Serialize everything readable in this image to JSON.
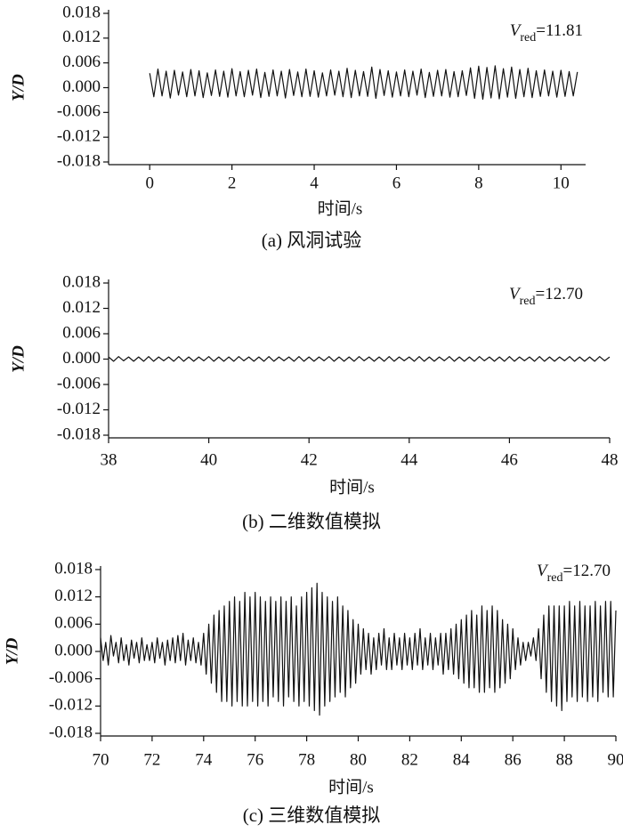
{
  "chart_data": [
    {
      "type": "line",
      "caption": "(a) 风洞试验",
      "xlabel": "时间/s",
      "ylabel": "Y/D",
      "annotation": {
        "symbol": "V",
        "subscript": "red",
        "text": "=11.81"
      },
      "xlim": [
        -1,
        10.6
      ],
      "ylim": [
        -0.018,
        0.018
      ],
      "xticks": [
        0,
        2,
        4,
        6,
        8,
        10
      ],
      "yticks": [
        0.018,
        0.012,
        0.006,
        {
          "value": 0,
          "label": "0.000"
        },
        -0.006,
        -0.012,
        -0.018
      ],
      "x": [
        0,
        0.1,
        0.2,
        0.3,
        0.4,
        0.5,
        0.6,
        0.7,
        0.8,
        0.9,
        1,
        1.1,
        1.2,
        1.3,
        1.4,
        1.5,
        1.6,
        1.7,
        1.8,
        1.9,
        2,
        2.1,
        2.2,
        2.3,
        2.4,
        2.5,
        2.6,
        2.7,
        2.8,
        2.9,
        3,
        3.1,
        3.2,
        3.3,
        3.4,
        3.5,
        3.6,
        3.7,
        3.8,
        3.9,
        4,
        4.1,
        4.2,
        4.3,
        4.4,
        4.5,
        4.6,
        4.7,
        4.8,
        4.9,
        5,
        5.1,
        5.2,
        5.3,
        5.4,
        5.5,
        5.6,
        5.7,
        5.8,
        5.9,
        6,
        6.1,
        6.2,
        6.3,
        6.4,
        6.5,
        6.6,
        6.7,
        6.8,
        6.9,
        7,
        7.1,
        7.2,
        7.3,
        7.4,
        7.5,
        7.6,
        7.7,
        7.8,
        7.9,
        8,
        8.1,
        8.2,
        8.3,
        8.4,
        8.5,
        8.6,
        8.7,
        8.8,
        8.9,
        9,
        9.1,
        9.2,
        9.3,
        9.4,
        9.5,
        9.6,
        9.7,
        9.8,
        9.9,
        10,
        10.1,
        10.2,
        10.3,
        10.4
      ],
      "series": [
        {
          "color": "#111111",
          "values": [
            0.0035,
            -0.0022,
            0.0045,
            -0.002,
            0.004,
            -0.0025,
            0.0042,
            -0.0018,
            0.0038,
            -0.0022,
            0.0044,
            -0.002,
            0.0041,
            -0.0024,
            0.0036,
            -0.0019,
            0.0043,
            -0.0021,
            0.004,
            -0.0023,
            0.0046,
            -0.002,
            0.0039,
            -0.0022,
            0.0042,
            -0.0018,
            0.0045,
            -0.0024,
            0.0037,
            -0.0021,
            0.0043,
            -0.002,
            0.004,
            -0.0025,
            0.0044,
            -0.0019,
            0.0038,
            -0.0022,
            0.0045,
            -0.0021,
            0.0041,
            -0.0023,
            0.0036,
            -0.002,
            0.0043,
            -0.0018,
            0.004,
            -0.0022,
            0.0047,
            -0.0024,
            0.0042,
            -0.002,
            0.0039,
            -0.0021,
            0.005,
            -0.0026,
            0.0044,
            -0.0019,
            0.0041,
            -0.0023,
            0.0038,
            -0.002,
            0.0043,
            -0.0022,
            0.004,
            -0.0018,
            0.0045,
            -0.0024,
            0.0037,
            -0.0021,
            0.0042,
            -0.002,
            0.0044,
            -0.0023,
            0.0039,
            -0.0022,
            0.0041,
            -0.0019,
            0.0048,
            -0.0026,
            0.0052,
            -0.0028,
            0.0049,
            -0.0025,
            0.0053,
            -0.0027,
            0.0046,
            -0.0023,
            0.005,
            -0.0026,
            0.0044,
            -0.0022,
            0.0047,
            -0.0024,
            0.0041,
            -0.0021,
            0.0043,
            -0.002,
            0.004,
            -0.0023,
            0.0042,
            -0.0021,
            0.0039,
            -0.002,
            0.0038
          ]
        }
      ]
    },
    {
      "type": "line",
      "caption": "(b) 二维数值模拟",
      "xlabel": "时间/s",
      "ylabel": "Y/D",
      "annotation": {
        "symbol": "V",
        "subscript": "red",
        "text": "=12.70"
      },
      "xlim": [
        38,
        48
      ],
      "ylim": [
        -0.018,
        0.018
      ],
      "xticks": [
        38,
        40,
        42,
        44,
        46,
        48
      ],
      "yticks": [
        0.018,
        0.012,
        0.006,
        {
          "value": 0,
          "label": "0.000"
        },
        -0.006,
        -0.012,
        -0.018
      ],
      "x": [
        38,
        38.1,
        38.2,
        38.3,
        38.4,
        38.5,
        38.6,
        38.7,
        38.8,
        38.9,
        39,
        39.1,
        39.2,
        39.3,
        39.4,
        39.5,
        39.6,
        39.7,
        39.8,
        39.9,
        40,
        40.1,
        40.2,
        40.3,
        40.4,
        40.5,
        40.6,
        40.7,
        40.8,
        40.9,
        41,
        41.1,
        41.2,
        41.3,
        41.4,
        41.5,
        41.6,
        41.7,
        41.8,
        41.9,
        42,
        42.1,
        42.2,
        42.3,
        42.4,
        42.5,
        42.6,
        42.7,
        42.8,
        42.9,
        43,
        43.1,
        43.2,
        43.3,
        43.4,
        43.5,
        43.6,
        43.7,
        43.8,
        43.9,
        44,
        44.1,
        44.2,
        44.3,
        44.4,
        44.5,
        44.6,
        44.7,
        44.8,
        44.9,
        45,
        45.1,
        45.2,
        45.3,
        45.4,
        45.5,
        45.6,
        45.7,
        45.8,
        45.9,
        46,
        46.1,
        46.2,
        46.3,
        46.4,
        46.5,
        46.6,
        46.7,
        46.8,
        46.9,
        47,
        47.1,
        47.2,
        47.3,
        47.4,
        47.5,
        47.6,
        47.7,
        47.8,
        47.9,
        48
      ],
      "series": [
        {
          "color": "#111111",
          "values": [
            0.0005,
            -0.0005,
            0.0006,
            -0.0004,
            0.0005,
            -0.0005,
            0.0005,
            -0.0005,
            0.0006,
            -0.0005,
            0.0005,
            -0.0004,
            0.0005,
            -0.0005,
            0.0006,
            -0.0005,
            0.0005,
            -0.0005,
            0.0005,
            -0.0004,
            0.0006,
            -0.0005,
            0.0005,
            -0.0005,
            0.0005,
            -0.0005,
            0.0006,
            -0.0004,
            0.0005,
            -0.0005,
            0.0005,
            -0.0005,
            0.0006,
            -0.0005,
            0.0005,
            -0.0004,
            0.0005,
            -0.0005,
            0.0006,
            -0.0005,
            0.0005,
            -0.0005,
            0.0005,
            -0.0004,
            0.0006,
            -0.0005,
            0.0005,
            -0.0005,
            0.0005,
            -0.0005,
            0.0006,
            -0.0004,
            0.0005,
            -0.0005,
            0.0005,
            -0.0005,
            0.0006,
            -0.0005,
            0.0005,
            -0.0004,
            0.0005,
            -0.0005,
            0.0006,
            -0.0005,
            0.0005,
            -0.0005,
            0.0005,
            -0.0004,
            0.0006,
            -0.0005,
            0.0005,
            -0.0005,
            0.0005,
            -0.0005,
            0.0006,
            -0.0004,
            0.0005,
            -0.0005,
            0.0005,
            -0.0005,
            0.0006,
            -0.0005,
            0.0005,
            -0.0004,
            0.0005,
            -0.0005,
            0.0006,
            -0.0005,
            0.0005,
            -0.0005,
            0.0005,
            -0.0004,
            0.0006,
            -0.0005,
            0.0005,
            -0.0005,
            0.0005,
            -0.0005,
            0.0006,
            -0.0004,
            0.0005
          ]
        }
      ]
    },
    {
      "type": "line",
      "caption": "(c) 三维数值模拟",
      "xlabel": "时间/s",
      "ylabel": "Y/D",
      "annotation": {
        "symbol": "V",
        "subscript": "red",
        "text": "=12.70"
      },
      "xlim": [
        70,
        90
      ],
      "ylim": [
        -0.018,
        0.018
      ],
      "xticks": [
        70,
        72,
        74,
        76,
        78,
        80,
        82,
        84,
        86,
        88,
        90
      ],
      "yticks": [
        0.018,
        0.012,
        0.006,
        {
          "value": 0,
          "label": "0.000"
        },
        -0.006,
        -0.012,
        -0.018
      ],
      "x": [
        70,
        70.1,
        70.2,
        70.3,
        70.4,
        70.5,
        70.6,
        70.7,
        70.8,
        70.9,
        71,
        71.1,
        71.2,
        71.3,
        71.4,
        71.5,
        71.6,
        71.7,
        71.8,
        71.9,
        72,
        72.1,
        72.2,
        72.3,
        72.4,
        72.5,
        72.6,
        72.7,
        72.8,
        72.9,
        73,
        73.1,
        73.2,
        73.3,
        73.4,
        73.5,
        73.6,
        73.7,
        73.8,
        73.9,
        74,
        74.1,
        74.2,
        74.3,
        74.4,
        74.5,
        74.6,
        74.7,
        74.8,
        74.9,
        75,
        75.1,
        75.2,
        75.3,
        75.4,
        75.5,
        75.6,
        75.7,
        75.8,
        75.9,
        76,
        76.1,
        76.2,
        76.3,
        76.4,
        76.5,
        76.6,
        76.7,
        76.8,
        76.9,
        77,
        77.1,
        77.2,
        77.3,
        77.4,
        77.5,
        77.6,
        77.7,
        77.8,
        77.9,
        78,
        78.1,
        78.2,
        78.3,
        78.4,
        78.5,
        78.6,
        78.7,
        78.8,
        78.9,
        79,
        79.1,
        79.2,
        79.3,
        79.4,
        79.5,
        79.6,
        79.7,
        79.8,
        79.9,
        80,
        80.1,
        80.2,
        80.3,
        80.4,
        80.5,
        80.6,
        80.7,
        80.8,
        80.9,
        81,
        81.1,
        81.2,
        81.3,
        81.4,
        81.5,
        81.6,
        81.7,
        81.8,
        81.9,
        82,
        82.1,
        82.2,
        82.3,
        82.4,
        82.5,
        82.6,
        82.7,
        82.8,
        82.9,
        83,
        83.1,
        83.2,
        83.3,
        83.4,
        83.5,
        83.6,
        83.7,
        83.8,
        83.9,
        84,
        84.1,
        84.2,
        84.3,
        84.4,
        84.5,
        84.6,
        84.7,
        84.8,
        84.9,
        85,
        85.1,
        85.2,
        85.3,
        85.4,
        85.5,
        85.6,
        85.7,
        85.8,
        85.9,
        86,
        86.1,
        86.2,
        86.3,
        86.4,
        86.5,
        86.6,
        86.7,
        86.8,
        86.9,
        87,
        87.1,
        87.2,
        87.3,
        87.4,
        87.5,
        87.6,
        87.7,
        87.8,
        87.9,
        88,
        88.1,
        88.2,
        88.3,
        88.4,
        88.5,
        88.6,
        88.7,
        88.8,
        88.9,
        89,
        89.1,
        89.2,
        89.3,
        89.4,
        89.5,
        89.6,
        89.7,
        89.8,
        89.9,
        90
      ],
      "series": [
        {
          "color": "#111111",
          "values": [
            0.003,
            -0.002,
            0.002,
            -0.003,
            0.0035,
            -0.001,
            0.002,
            -0.0025,
            0.003,
            -0.002,
            0.0015,
            -0.003,
            0.0025,
            -0.0015,
            0.002,
            -0.0025,
            0.003,
            -0.002,
            0.0015,
            -0.002,
            0.002,
            -0.0025,
            0.003,
            -0.0015,
            0.002,
            -0.003,
            0.0025,
            -0.002,
            0.003,
            -0.0025,
            0.0035,
            -0.002,
            0.004,
            -0.003,
            0.0025,
            -0.002,
            0.003,
            -0.0025,
            0.002,
            -0.003,
            0.004,
            -0.005,
            0.006,
            -0.007,
            0.008,
            -0.009,
            0.009,
            -0.011,
            0.01,
            -0.011,
            0.011,
            -0.012,
            0.012,
            -0.011,
            0.011,
            -0.012,
            0.013,
            -0.012,
            0.012,
            -0.011,
            0.013,
            -0.012,
            0.012,
            -0.011,
            0.011,
            -0.012,
            0.012,
            -0.01,
            0.011,
            -0.011,
            0.012,
            -0.012,
            0.011,
            -0.01,
            0.012,
            -0.011,
            0.01,
            -0.012,
            0.012,
            -0.011,
            0.013,
            -0.012,
            0.014,
            -0.013,
            0.015,
            -0.014,
            0.013,
            -0.012,
            0.012,
            -0.011,
            0.011,
            -0.01,
            0.012,
            -0.009,
            0.01,
            -0.01,
            0.009,
            -0.008,
            0.007,
            -0.007,
            0.006,
            -0.005,
            0.005,
            -0.004,
            0.004,
            -0.005,
            0.003,
            -0.004,
            0.004,
            -0.003,
            0.005,
            -0.004,
            0.003,
            -0.004,
            0.004,
            -0.003,
            0.003,
            -0.004,
            0.004,
            -0.003,
            0.003,
            -0.004,
            0.004,
            -0.003,
            0.005,
            -0.004,
            0.003,
            -0.003,
            0.004,
            -0.004,
            0.003,
            -0.003,
            0.004,
            -0.005,
            0.004,
            -0.004,
            0.005,
            -0.005,
            0.006,
            -0.006,
            0.007,
            -0.007,
            0.008,
            -0.008,
            0.009,
            -0.008,
            0.008,
            -0.009,
            0.01,
            -0.009,
            0.009,
            -0.008,
            0.01,
            -0.009,
            0.009,
            -0.008,
            0.007,
            -0.007,
            0.006,
            -0.006,
            0.005,
            -0.004,
            0.003,
            -0.003,
            0.002,
            -0.002,
            0.002,
            -0.001,
            0.003,
            -0.002,
            0.005,
            -0.006,
            0.008,
            -0.009,
            0.01,
            -0.011,
            0.01,
            -0.012,
            0.01,
            -0.013,
            0.01,
            -0.011,
            0.011,
            -0.01,
            0.01,
            -0.011,
            0.011,
            -0.01,
            0.01,
            -0.011,
            0.01,
            -0.01,
            0.011,
            -0.011,
            0.01,
            -0.009,
            0.011,
            -0.01,
            0.011,
            -0.01,
            0.009
          ]
        }
      ]
    }
  ]
}
